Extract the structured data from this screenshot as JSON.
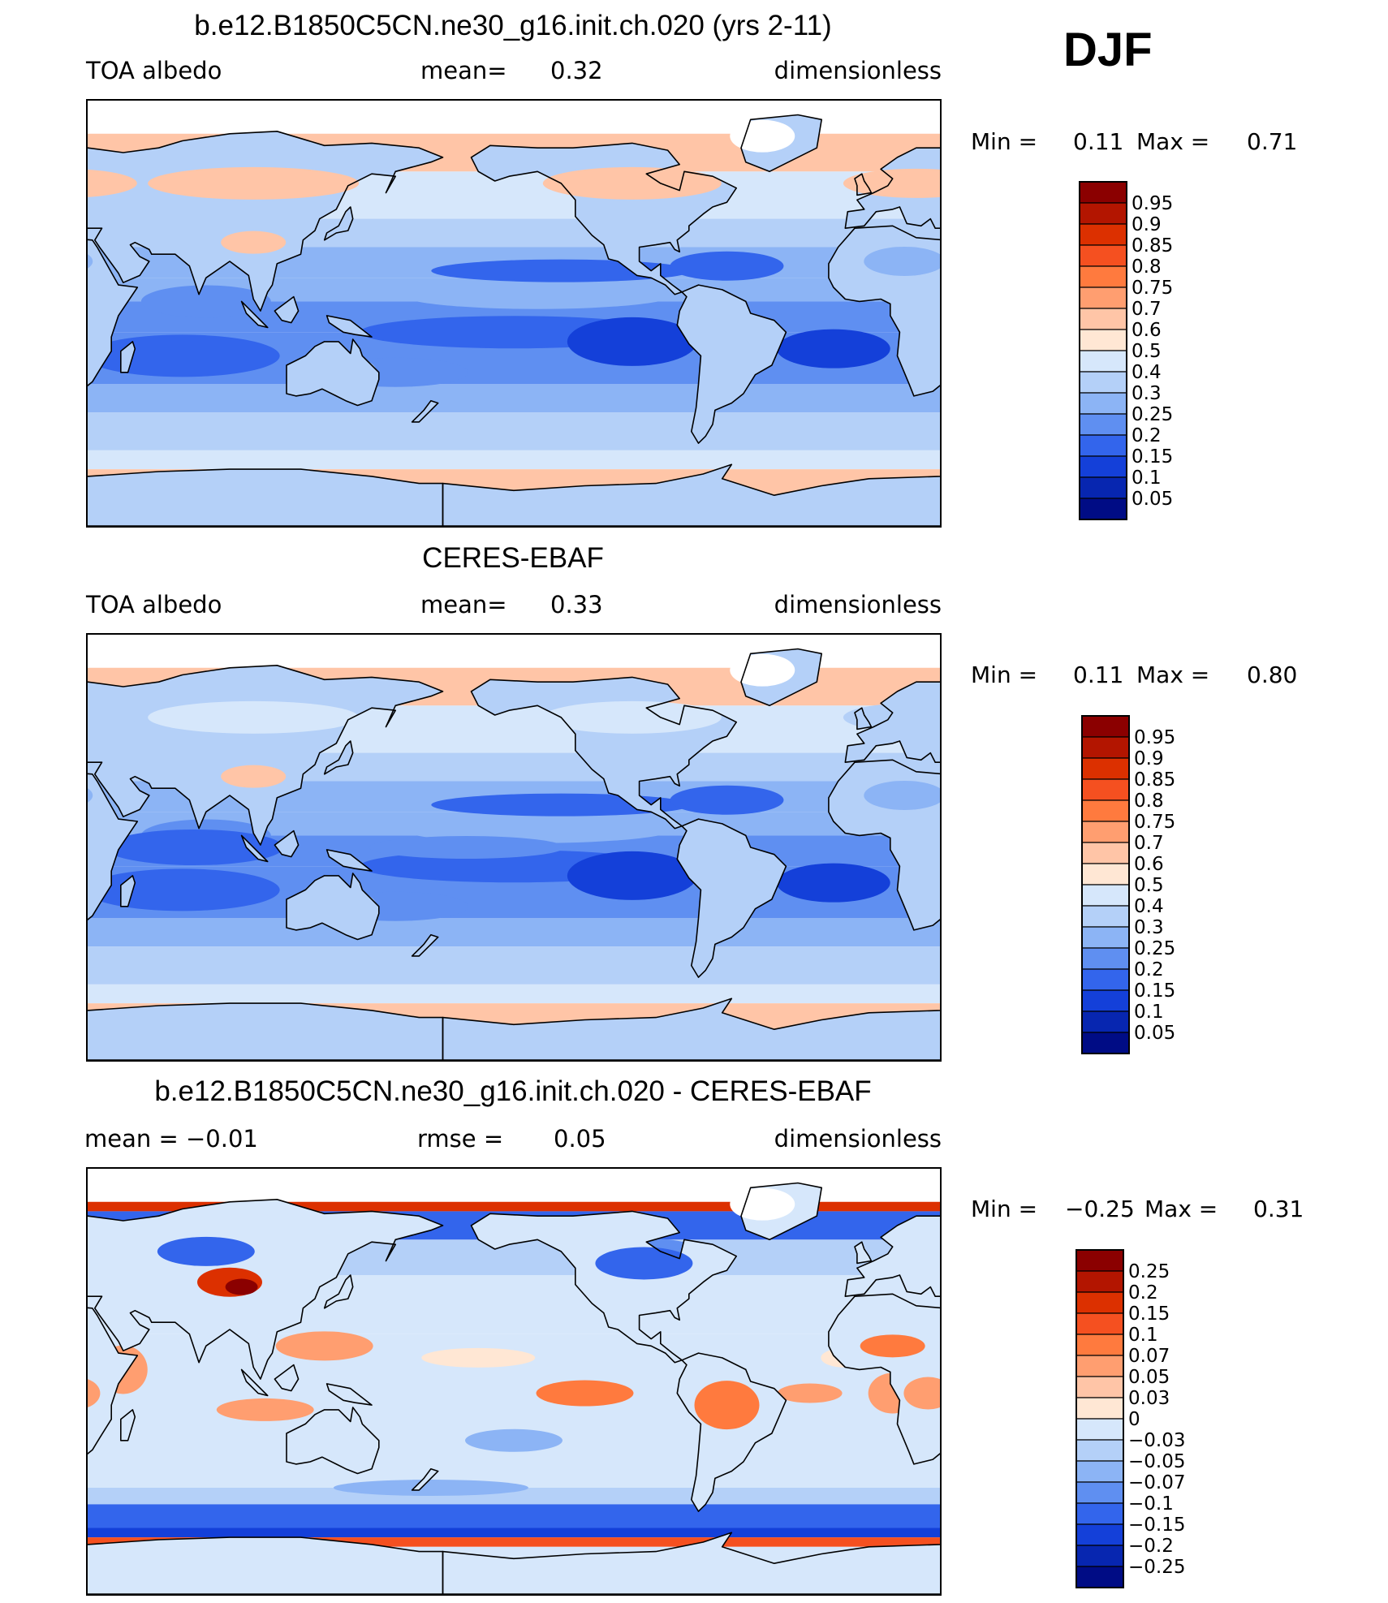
{
  "season": "DJF",
  "panels": [
    {
      "title": "b.e12.B1850C5CN.ne30_g16.init.ch.020 (yrs 2-11)",
      "left": "TOA  albedo",
      "mid_label": "mean=",
      "mid_value": "0.32",
      "right_label": "",
      "right_value": "",
      "units": "dimensionless",
      "min_label": "Min  =",
      "min_value": "0.11",
      "max_label": "Max  =",
      "max_value": "0.71",
      "map_type": "absolute",
      "colorbar": {
        "labels": [
          "0.95",
          "0.9",
          "0.85",
          "0.8",
          "0.75",
          "0.7",
          "0.6",
          "0.5",
          "0.4",
          "0.3",
          "0.25",
          "0.2",
          "0.15",
          "0.1",
          "0.05"
        ],
        "colors": [
          "#8b0000",
          "#b31500",
          "#dc3000",
          "#f55020",
          "#ff7a3e",
          "#ff9e70",
          "#ffc5a7",
          "#ffe7d4",
          "#d6e7fb",
          "#b4d0f8",
          "#8cb4f5",
          "#5f8ff1",
          "#3365ec",
          "#1440d9",
          "#0726b0",
          "#000c85"
        ]
      }
    },
    {
      "title": "CERES-EBAF",
      "left": "TOA  albedo",
      "mid_label": "mean=",
      "mid_value": "0.33",
      "right_label": "",
      "right_value": "",
      "units": "dimensionless",
      "min_label": "Min  =",
      "min_value": "0.11",
      "max_label": "Max  =",
      "max_value": "0.80",
      "map_type": "absolute",
      "colorbar": {
        "labels": [
          "0.95",
          "0.9",
          "0.85",
          "0.8",
          "0.75",
          "0.7",
          "0.6",
          "0.5",
          "0.4",
          "0.3",
          "0.25",
          "0.2",
          "0.15",
          "0.1",
          "0.05"
        ],
        "colors": [
          "#8b0000",
          "#b31500",
          "#dc3000",
          "#f55020",
          "#ff7a3e",
          "#ff9e70",
          "#ffc5a7",
          "#ffe7d4",
          "#d6e7fb",
          "#b4d0f8",
          "#8cb4f5",
          "#5f8ff1",
          "#3365ec",
          "#1440d9",
          "#0726b0",
          "#000c85"
        ]
      }
    },
    {
      "title": "b.e12.B1850C5CN.ne30_g16.init.ch.020 - CERES-EBAF",
      "left": "mean  =    −0.01",
      "mid_label": "rmse  =",
      "mid_value": "0.05",
      "right_label": "",
      "right_value": "",
      "units": "dimensionless",
      "min_label": "Min  =",
      "min_value": "−0.25",
      "max_label": "Max  =",
      "max_value": "0.31",
      "map_type": "difference",
      "colorbar": {
        "labels": [
          "0.25",
          "0.2",
          "0.15",
          "0.1",
          "0.07",
          "0.05",
          "0.03",
          "0",
          "−0.03",
          "−0.05",
          "−0.07",
          "−0.1",
          "−0.15",
          "−0.2",
          "−0.25"
        ],
        "colors": [
          "#8b0000",
          "#b31500",
          "#dc3000",
          "#f55020",
          "#ff7a3e",
          "#ff9e70",
          "#ffc5a7",
          "#ffe7d4",
          "#d6e7fb",
          "#b4d0f8",
          "#8cb4f5",
          "#5f8ff1",
          "#3365ec",
          "#1440d9",
          "#0726b0",
          "#000c85"
        ]
      }
    }
  ]
}
